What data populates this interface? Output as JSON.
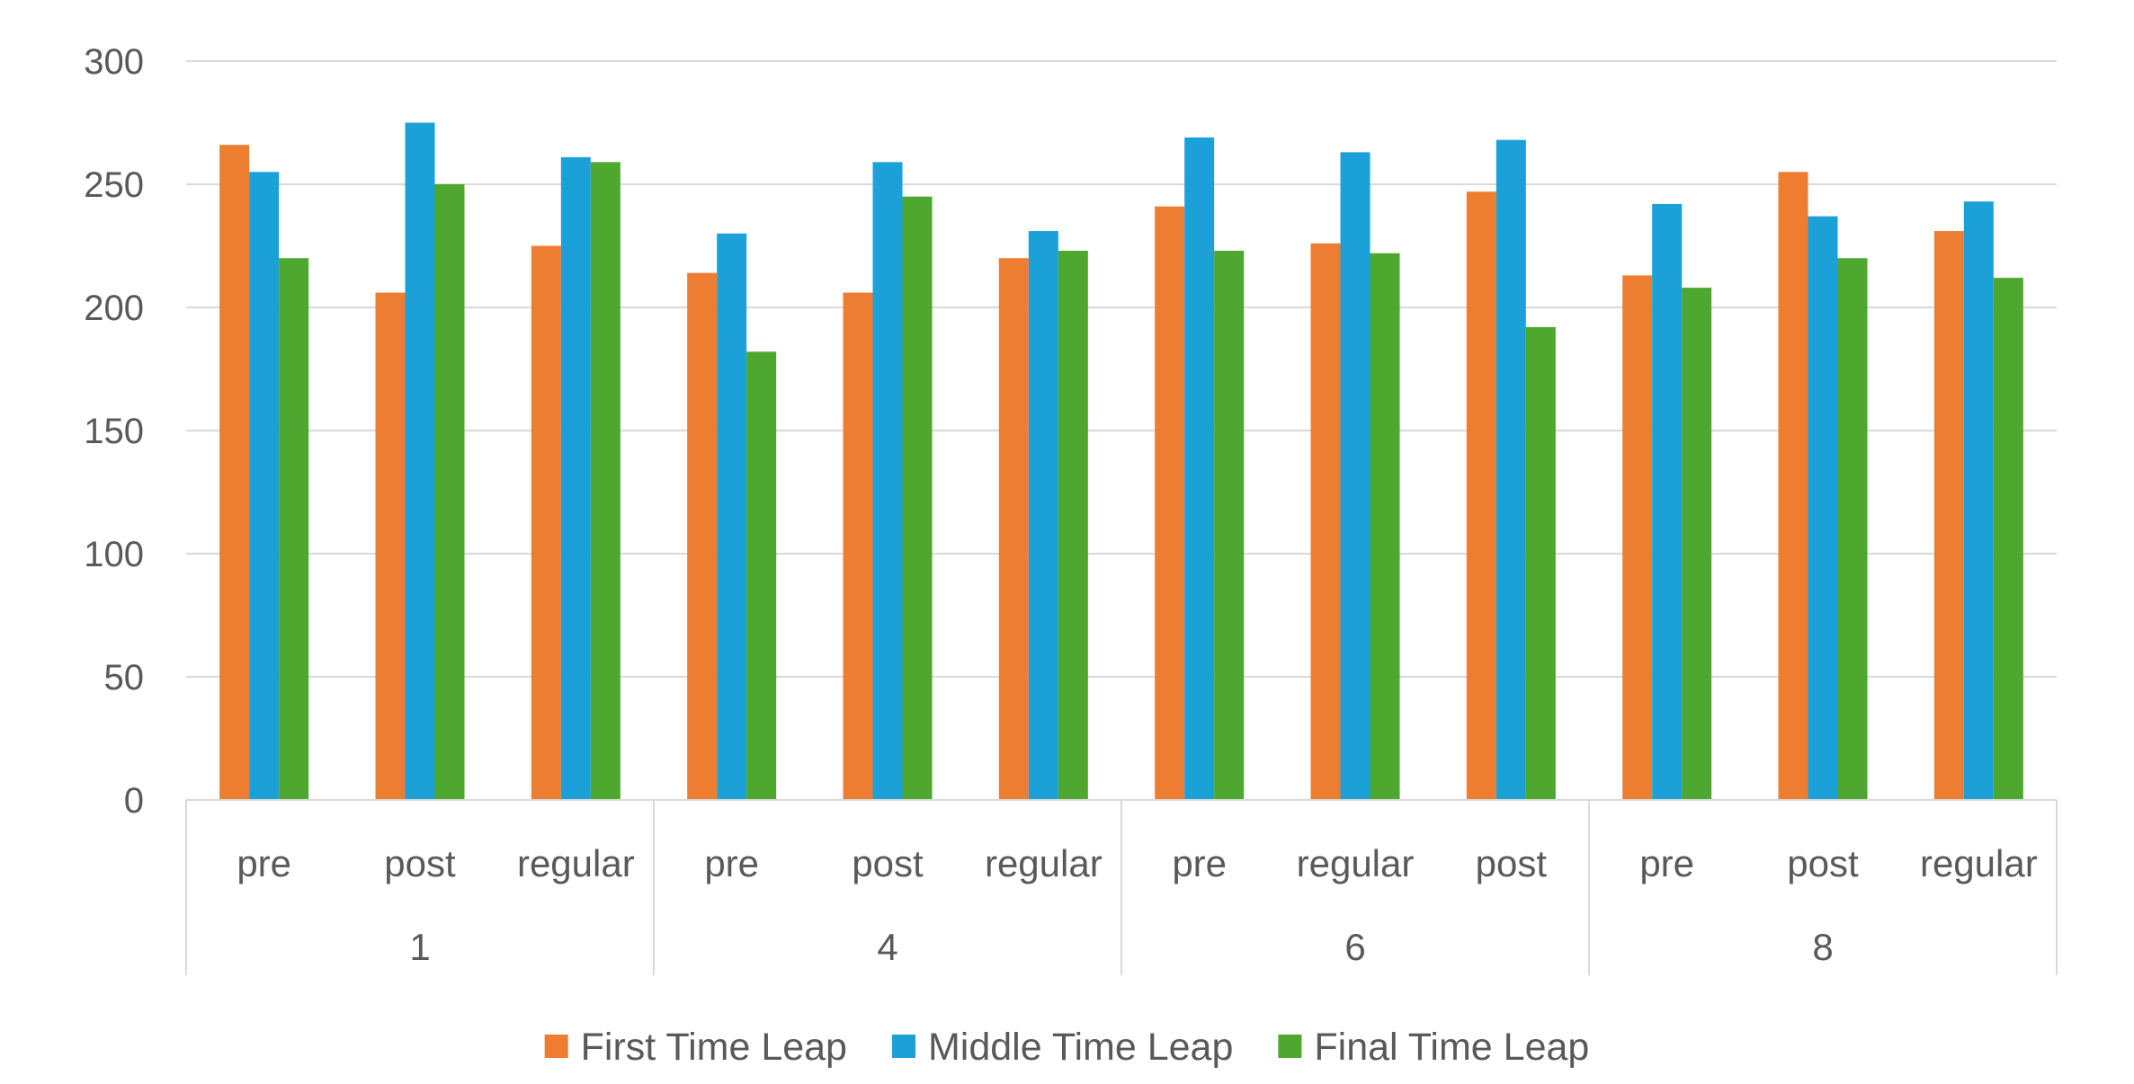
{
  "chart_data": {
    "type": "bar",
    "title": "",
    "xlabel": "",
    "ylabel": "",
    "ylim": [
      0,
      300
    ],
    "yticks": [
      0,
      50,
      100,
      150,
      200,
      250,
      300
    ],
    "grid": true,
    "legend": "bottom",
    "groups": [
      {
        "label": "1",
        "categories": [
          "pre",
          "post",
          "regular"
        ]
      },
      {
        "label": "4",
        "categories": [
          "pre",
          "post",
          "regular"
        ]
      },
      {
        "label": "6",
        "categories": [
          "pre",
          "regular",
          "post"
        ]
      },
      {
        "label": "8",
        "categories": [
          "pre",
          "post",
          "regular"
        ]
      }
    ],
    "series": [
      {
        "name": "First Time Leap",
        "color": "#ED7D31",
        "values": [
          266,
          206,
          225,
          214,
          206,
          220,
          241,
          226,
          247,
          213,
          255,
          231
        ]
      },
      {
        "name": "Middle Time Leap",
        "color": "#1BA1D8",
        "values": [
          255,
          275,
          261,
          230,
          259,
          231,
          269,
          263,
          268,
          242,
          237,
          243
        ]
      },
      {
        "name": "Final Time Leap",
        "color": "#4EA72E",
        "values": [
          220,
          250,
          259,
          182,
          245,
          223,
          223,
          222,
          192,
          208,
          220,
          212
        ]
      }
    ]
  }
}
